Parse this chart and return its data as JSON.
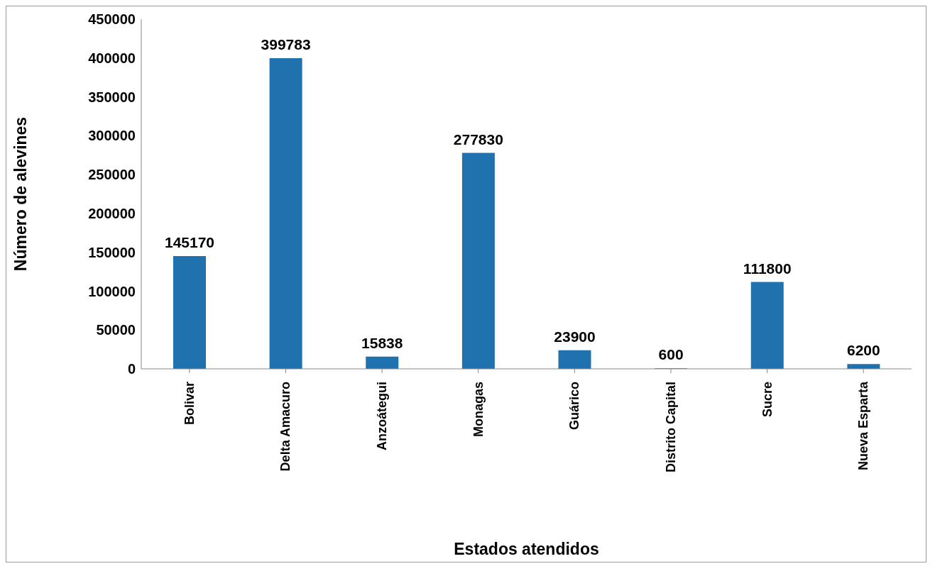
{
  "chart_data": {
    "type": "bar",
    "xlabel": "Estados atendidos",
    "ylabel": "Número de alevines",
    "categories": [
      "Bolivar",
      "Delta Amacuro",
      "Anzoátegui",
      "Monagas",
      "Guárico",
      "Distrito Capital",
      "Sucre",
      "Nueva Esparta"
    ],
    "values": [
      145170,
      399783,
      15838,
      277830,
      23900,
      600,
      111800,
      6200
    ],
    "color": "#1f72ad",
    "ylim": [
      0,
      450000
    ],
    "yticks": [
      0,
      50000,
      100000,
      150000,
      200000,
      250000,
      300000,
      350000,
      400000,
      450000
    ],
    "data_labels": true,
    "grid": false,
    "legend": false
  }
}
